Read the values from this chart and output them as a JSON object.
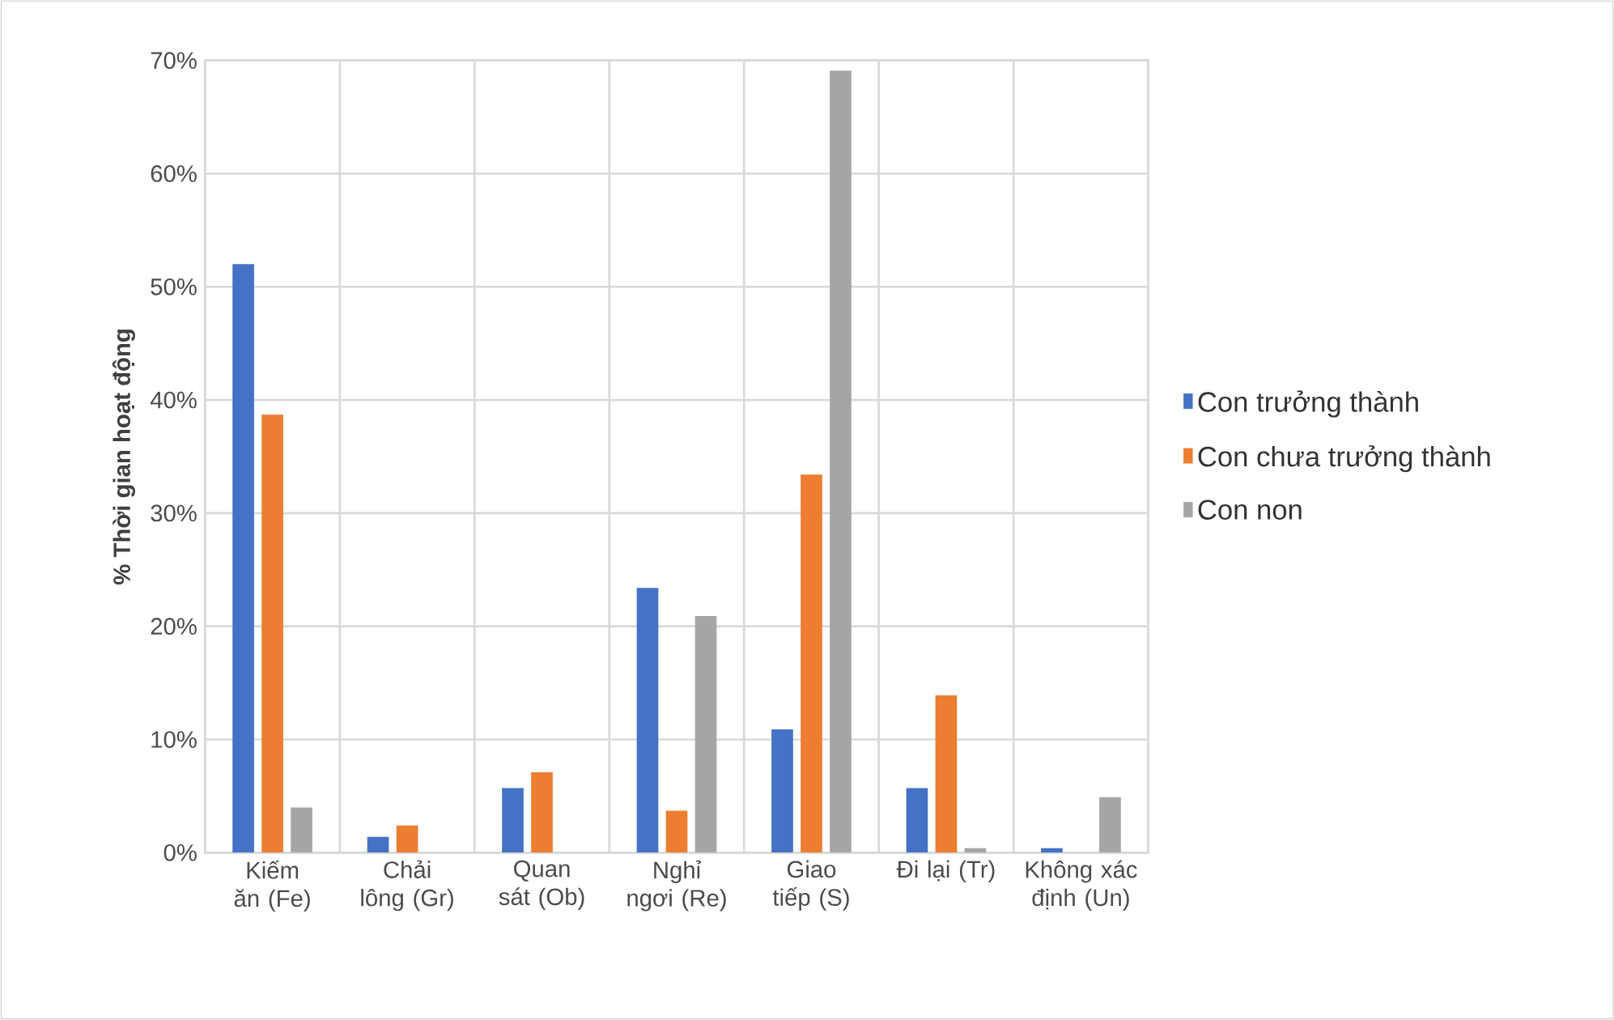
{
  "chart_data": {
    "type": "bar",
    "ylabel": "% Thời gian hoạt động",
    "categories": [
      "Kiếm ăn (Fe)",
      "Chải lông (Gr)",
      "Quan sát (Ob)",
      "Nghỉ ngơi (Re)",
      "Giao tiếp (S)",
      "Đi lại (Tr)",
      "Không xác định (Un)"
    ],
    "series": [
      {
        "name": "Con trưởng thành",
        "color": "#4472c4",
        "values": [
          52,
          1.4,
          5.7,
          23.4,
          10.9,
          5.7,
          0.4
        ]
      },
      {
        "name": "Con chưa trưởng thành",
        "color": "#ed7d31",
        "values": [
          38.7,
          2.4,
          7.1,
          3.7,
          33.4,
          13.9,
          0
        ]
      },
      {
        "name": "Con non",
        "color": "#a5a5a5",
        "values": [
          4,
          0,
          0,
          20.9,
          69.1,
          0.4,
          4.9
        ]
      }
    ],
    "ylim": [
      0,
      70
    ],
    "yticks": [
      {
        "value": 0,
        "label": "0%"
      },
      {
        "value": 10,
        "label": "10%"
      },
      {
        "value": 20,
        "label": "20%"
      },
      {
        "value": 30,
        "label": "30%"
      },
      {
        "value": 40,
        "label": "40%"
      },
      {
        "value": 50,
        "label": "50%"
      },
      {
        "value": 60,
        "label": "60%"
      },
      {
        "value": 70,
        "label": "70%"
      }
    ],
    "grid": true,
    "legend": "right"
  }
}
